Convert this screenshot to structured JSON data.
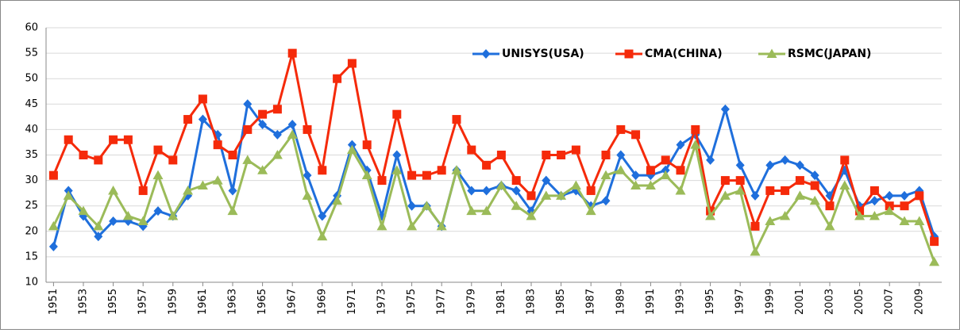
{
  "chart_data": {
    "type": "line",
    "x": [
      1951,
      1952,
      1953,
      1954,
      1955,
      1956,
      1957,
      1958,
      1959,
      1960,
      1961,
      1962,
      1963,
      1964,
      1965,
      1966,
      1967,
      1968,
      1969,
      1970,
      1971,
      1972,
      1973,
      1974,
      1975,
      1976,
      1977,
      1978,
      1979,
      1980,
      1981,
      1982,
      1983,
      1984,
      1985,
      1986,
      1987,
      1988,
      1989,
      1990,
      1991,
      1992,
      1993,
      1994,
      1995,
      1996,
      1997,
      1998,
      1999,
      2000,
      2001,
      2002,
      2003,
      2004,
      2005,
      2006,
      2007,
      2008,
      2009,
      2010
    ],
    "xlim": [
      1950.5,
      2010.5
    ],
    "xticks": [
      1951,
      1953,
      1955,
      1957,
      1959,
      1961,
      1963,
      1965,
      1967,
      1969,
      1971,
      1973,
      1975,
      1977,
      1979,
      1981,
      1983,
      1985,
      1987,
      1989,
      1991,
      1993,
      1995,
      1997,
      1999,
      2001,
      2003,
      2005,
      2007,
      2009
    ],
    "ylim": [
      10,
      60
    ],
    "yticks": [
      10,
      15,
      20,
      25,
      30,
      35,
      40,
      45,
      50,
      55,
      60
    ],
    "grid": true,
    "series": [
      {
        "name": "UNISYS(USA)",
        "color": "#1f6fdc",
        "marker": "diamond",
        "values": [
          17,
          28,
          23,
          19,
          22,
          22,
          21,
          24,
          23,
          27,
          42,
          39,
          28,
          45,
          41,
          39,
          41,
          31,
          23,
          27,
          37,
          32,
          23,
          35,
          25,
          25,
          21,
          32,
          28,
          28,
          29,
          28,
          24,
          30,
          27,
          28,
          25,
          26,
          35,
          31,
          31,
          32,
          37,
          39,
          34,
          44,
          33,
          27,
          33,
          34,
          33,
          31,
          27,
          32,
          25,
          26,
          27,
          27,
          28,
          19
        ]
      },
      {
        "name": "CMA(CHINA)",
        "color": "#f52a0a",
        "marker": "square",
        "values": [
          31,
          38,
          35,
          34,
          38,
          38,
          28,
          36,
          34,
          42,
          46,
          37,
          35,
          40,
          43,
          44,
          55,
          40,
          32,
          50,
          53,
          37,
          30,
          43,
          31,
          31,
          32,
          42,
          36,
          33,
          35,
          30,
          27,
          35,
          35,
          36,
          28,
          35,
          40,
          39,
          32,
          34,
          32,
          40,
          24,
          30,
          30,
          21,
          28,
          28,
          30,
          29,
          25,
          34,
          24,
          28,
          25,
          25,
          27,
          18
        ]
      },
      {
        "name": "RSMC(JAPAN)",
        "color": "#9bbb59",
        "marker": "triangle",
        "values": [
          21,
          27,
          24,
          21,
          28,
          23,
          22,
          31,
          23,
          28,
          29,
          30,
          24,
          34,
          32,
          35,
          39,
          27,
          19,
          26,
          36,
          31,
          21,
          32,
          21,
          25,
          21,
          32,
          24,
          24,
          29,
          25,
          23,
          27,
          27,
          29,
          24,
          31,
          32,
          29,
          29,
          31,
          28,
          37,
          23,
          27,
          28,
          16,
          22,
          23,
          27,
          26,
          21,
          29,
          23,
          23,
          24,
          22,
          22,
          14
        ]
      }
    ]
  }
}
